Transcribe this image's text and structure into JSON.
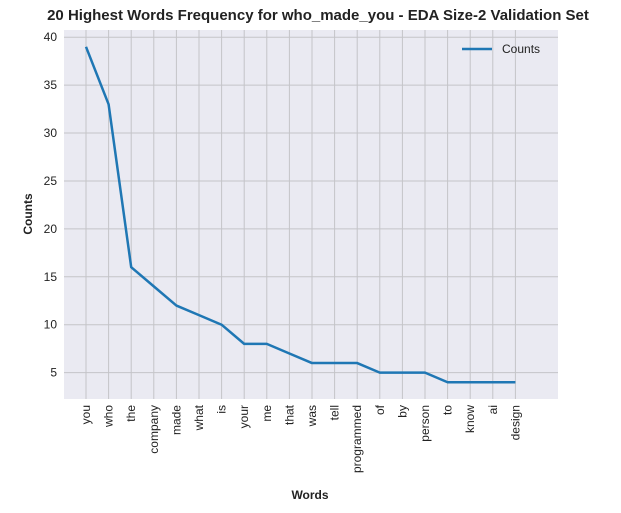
{
  "chart_data": {
    "type": "line",
    "title": "20 Highest Words Frequency for who_made_you - EDA Size-2 Validation Set",
    "xlabel": "Words",
    "ylabel": "Counts",
    "categories": [
      "you",
      "who",
      "the",
      "company",
      "made",
      "what",
      "is",
      "your",
      "me",
      "that",
      "was",
      "tell",
      "programmed",
      "of",
      "by",
      "person",
      "to",
      "know",
      "ai",
      "design"
    ],
    "series": [
      {
        "name": "Counts",
        "values": [
          39,
          33,
          16,
          14,
          12,
          11,
          10,
          8,
          8,
          7,
          6,
          6,
          6,
          5,
          5,
          5,
          4,
          4,
          4,
          4
        ],
        "color": "#1f77b4"
      }
    ],
    "ylim": [
      2.25,
      40.75
    ],
    "yticks": [
      5,
      10,
      15,
      20,
      25,
      30,
      35,
      40
    ],
    "grid": true,
    "legend_position": "top-right",
    "background": "#eaeaf2",
    "grid_color": "#c4c4c8"
  }
}
